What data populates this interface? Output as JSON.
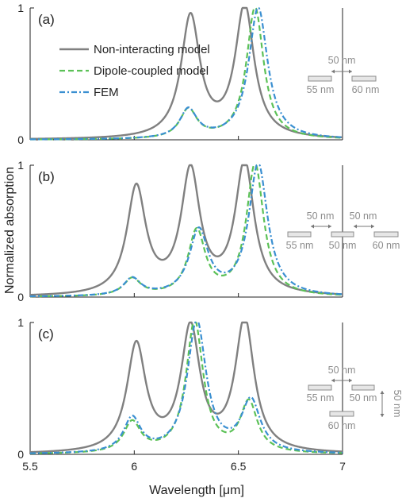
{
  "chart_data": {
    "type": "line",
    "xlabel": "Wavelength [μm]",
    "ylabel": "Normalized absorption",
    "xlim": [
      5.5,
      7.0
    ],
    "ylim": [
      0,
      1
    ],
    "xticks": [
      "5.5",
      "6",
      "6.5",
      "7"
    ],
    "yticks": [
      "0",
      "1"
    ],
    "legend": {
      "placement": "top-left of panel (a)",
      "entries": [
        "Non-interacting model",
        "Dipole-coupled model",
        "FEM"
      ]
    },
    "colors": {
      "non_interacting": "#808080",
      "dipole": "#5cc157",
      "fem": "#3a8fd1"
    },
    "panels": [
      {
        "label": "(a)",
        "series": [
          {
            "name": "Non-interacting model",
            "peaks": [
              {
                "x": 6.27,
                "h": 0.92,
                "w": 0.055
              },
              {
                "x": 6.53,
                "h": 1.0,
                "w": 0.055
              }
            ]
          },
          {
            "name": "Dipole-coupled model",
            "peaks": [
              {
                "x": 6.26,
                "h": 0.22,
                "w": 0.05
              },
              {
                "x": 6.58,
                "h": 1.0,
                "w": 0.05
              }
            ]
          },
          {
            "name": "FEM",
            "peaks": [
              {
                "x": 6.26,
                "h": 0.22,
                "w": 0.05
              },
              {
                "x": 6.595,
                "h": 1.0,
                "w": 0.055
              }
            ]
          }
        ],
        "annotations": {
          "gaps": [
            "50 nm"
          ],
          "sizes": [
            "55 nm",
            "60 nm"
          ]
        }
      },
      {
        "label": "(b)",
        "series": [
          {
            "name": "Non-interacting model",
            "peaks": [
              {
                "x": 6.01,
                "h": 0.81,
                "w": 0.055
              },
              {
                "x": 6.27,
                "h": 0.93,
                "w": 0.055
              },
              {
                "x": 6.53,
                "h": 1.0,
                "w": 0.055
              }
            ]
          },
          {
            "name": "Dipole-coupled model",
            "peaks": [
              {
                "x": 5.99,
                "h": 0.13,
                "w": 0.05
              },
              {
                "x": 6.3,
                "h": 0.49,
                "w": 0.05
              },
              {
                "x": 6.58,
                "h": 1.0,
                "w": 0.05
              }
            ]
          },
          {
            "name": "FEM",
            "peaks": [
              {
                "x": 5.99,
                "h": 0.13,
                "w": 0.05
              },
              {
                "x": 6.31,
                "h": 0.49,
                "w": 0.055
              },
              {
                "x": 6.595,
                "h": 1.0,
                "w": 0.055
              }
            ]
          }
        ],
        "annotations": {
          "gaps": [
            "50 nm",
            "50 nm"
          ],
          "sizes": [
            "55 nm",
            "50 nm",
            "60 nm"
          ]
        }
      },
      {
        "label": "(c)",
        "series": [
          {
            "name": "Non-interacting model",
            "peaks": [
              {
                "x": 6.01,
                "h": 0.81,
                "w": 0.055
              },
              {
                "x": 6.27,
                "h": 0.93,
                "w": 0.055
              },
              {
                "x": 6.53,
                "h": 1.0,
                "w": 0.055
              }
            ]
          },
          {
            "name": "Dipole-coupled model",
            "peaks": [
              {
                "x": 5.99,
                "h": 0.23,
                "w": 0.05
              },
              {
                "x": 6.29,
                "h": 1.0,
                "w": 0.05
              },
              {
                "x": 6.55,
                "h": 0.38,
                "w": 0.05
              }
            ]
          },
          {
            "name": "FEM",
            "peaks": [
              {
                "x": 5.99,
                "h": 0.26,
                "w": 0.05
              },
              {
                "x": 6.3,
                "h": 1.0,
                "w": 0.055
              },
              {
                "x": 6.56,
                "h": 0.39,
                "w": 0.055
              }
            ]
          }
        ],
        "annotations": {
          "gaps": [
            "50 nm",
            "50 nm"
          ],
          "sizes": [
            "55 nm",
            "50 nm",
            "60 nm"
          ]
        }
      }
    ]
  }
}
